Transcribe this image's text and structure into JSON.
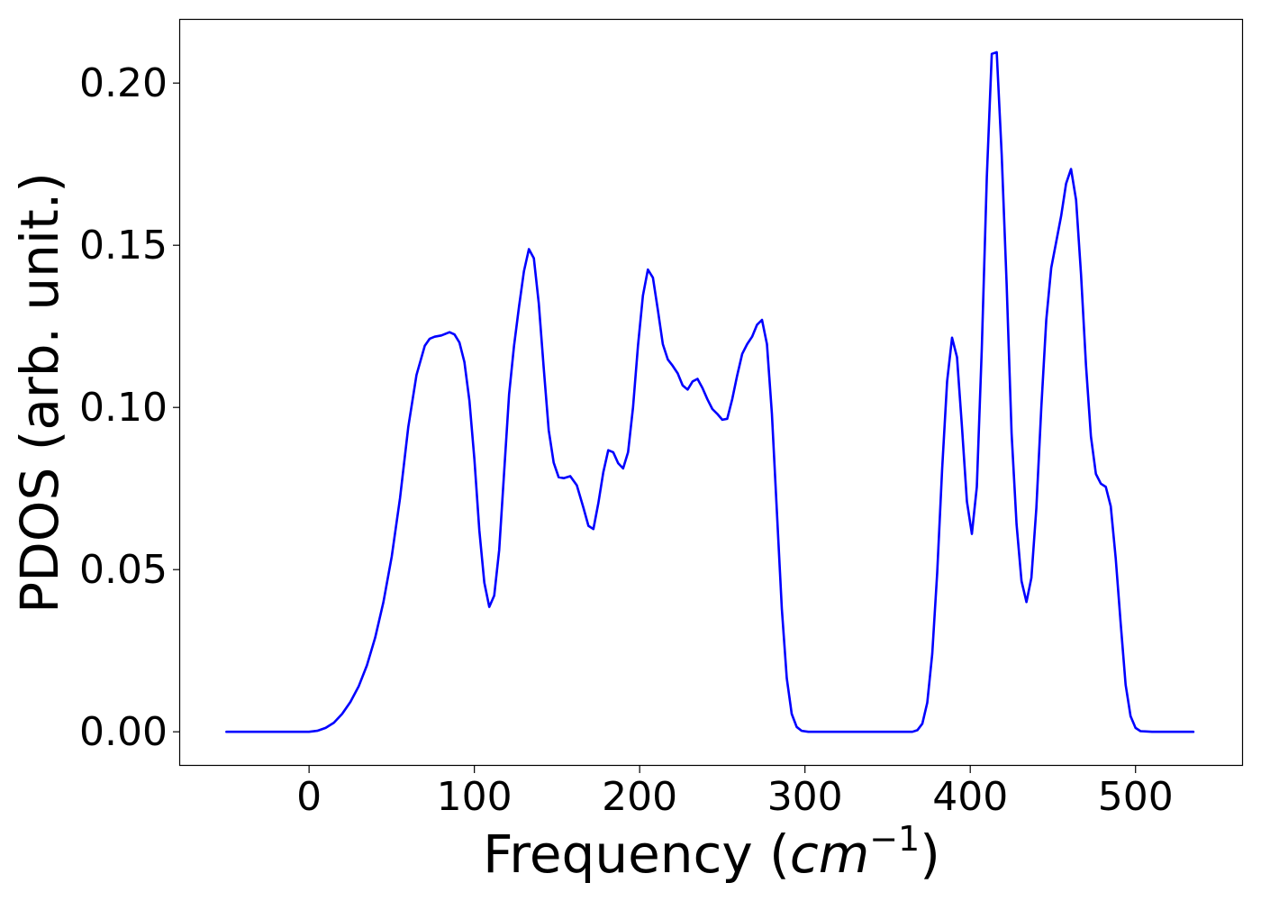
{
  "chart_data": {
    "type": "line",
    "title": "",
    "xlabel": "Frequency (",
    "xlabel_math_base": "cm",
    "xlabel_math_sup": "−1",
    "xlabel_close": ")",
    "ylabel": "PDOS (arb. unit.)",
    "xlim": [
      -78,
      565
    ],
    "ylim": [
      -0.0105,
      0.2195
    ],
    "xticks": [
      0,
      100,
      200,
      300,
      400,
      500
    ],
    "xtick_labels": [
      "0",
      "100",
      "200",
      "300",
      "400",
      "500"
    ],
    "yticks": [
      0.0,
      0.05,
      0.1,
      0.15,
      0.2
    ],
    "ytick_labels": [
      "0.00",
      "0.05",
      "0.10",
      "0.15",
      "0.20"
    ],
    "grid": false,
    "legend": "none",
    "series": [
      {
        "color": "#0000ff",
        "x": [
          -50,
          -20,
          0,
          5,
          10,
          15,
          20,
          25,
          30,
          35,
          40,
          45,
          50,
          55,
          60,
          65,
          70,
          73,
          76,
          80,
          85,
          88,
          91,
          94,
          97,
          100,
          103,
          106,
          109,
          112,
          115,
          118,
          121,
          124,
          127,
          130,
          133,
          136,
          139,
          142,
          145,
          148,
          151,
          154,
          158,
          162,
          166,
          169,
          172,
          175,
          178,
          181,
          184,
          187,
          190,
          193,
          196,
          199,
          202,
          205,
          208,
          211,
          214,
          217,
          220,
          223,
          226,
          229,
          232,
          235,
          238,
          241,
          244,
          247,
          250,
          253,
          256,
          259,
          262,
          265,
          268,
          271,
          274,
          277,
          280,
          283,
          286,
          289,
          292,
          295,
          298,
          302,
          310,
          340,
          365,
          368,
          371,
          374,
          377,
          380,
          383,
          386,
          389,
          392,
          395,
          398,
          401,
          404,
          407,
          410,
          413,
          416,
          419,
          422,
          425,
          428,
          431,
          434,
          437,
          440,
          443,
          446,
          449,
          452,
          455,
          458,
          461,
          464,
          467,
          470,
          473,
          476,
          479,
          482,
          485,
          488,
          491,
          494,
          497,
          500,
          503,
          510,
          535
        ],
        "y": [
          0.0,
          0.0,
          0.0,
          0.0003,
          0.0012,
          0.0028,
          0.0055,
          0.0092,
          0.014,
          0.0205,
          0.029,
          0.04,
          0.054,
          0.072,
          0.094,
          0.11,
          0.119,
          0.1212,
          0.1218,
          0.1222,
          0.1232,
          0.1225,
          0.12,
          0.114,
          0.102,
          0.084,
          0.062,
          0.046,
          0.0385,
          0.042,
          0.056,
          0.08,
          0.104,
          0.119,
          0.131,
          0.142,
          0.1488,
          0.146,
          0.132,
          0.112,
          0.093,
          0.083,
          0.0785,
          0.0782,
          0.0788,
          0.076,
          0.069,
          0.0635,
          0.0625,
          0.0705,
          0.08,
          0.0868,
          0.0862,
          0.0828,
          0.0812,
          0.0862,
          0.1,
          0.119,
          0.1345,
          0.1425,
          0.14,
          0.13,
          0.1195,
          0.1148,
          0.1128,
          0.1105,
          0.1068,
          0.1055,
          0.108,
          0.1088,
          0.106,
          0.1025,
          0.0995,
          0.098,
          0.0962,
          0.0965,
          0.1025,
          0.1098,
          0.1165,
          0.1195,
          0.1218,
          0.1255,
          0.127,
          0.1195,
          0.098,
          0.068,
          0.038,
          0.0165,
          0.0055,
          0.0015,
          0.0003,
          0.0,
          0.0,
          0.0,
          0.0,
          0.0005,
          0.0025,
          0.009,
          0.024,
          0.049,
          0.081,
          0.108,
          0.1215,
          0.1155,
          0.094,
          0.071,
          0.061,
          0.0755,
          0.118,
          0.171,
          0.209,
          0.2095,
          0.178,
          0.138,
          0.092,
          0.064,
          0.0465,
          0.04,
          0.0475,
          0.069,
          0.1,
          0.127,
          0.143,
          0.151,
          0.159,
          0.169,
          0.1735,
          0.164,
          0.141,
          0.113,
          0.091,
          0.0795,
          0.0765,
          0.0755,
          0.0695,
          0.0535,
          0.0335,
          0.0145,
          0.0048,
          0.0012,
          0.0002,
          0.0,
          0.0
        ]
      }
    ]
  }
}
